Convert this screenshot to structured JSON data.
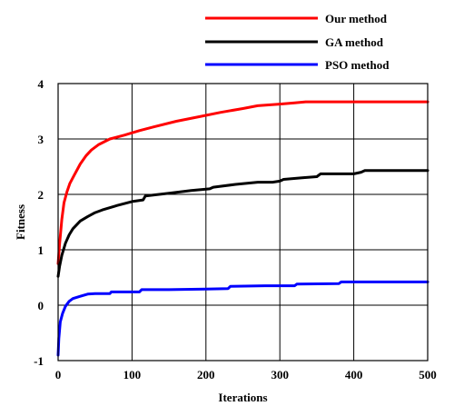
{
  "chart_data": {
    "type": "line",
    "title": "",
    "xlabel": "Iterations",
    "ylabel": "Fitness",
    "xlim": [
      0,
      500
    ],
    "ylim": [
      -1,
      4
    ],
    "xticks": [
      "0",
      "100",
      "200",
      "300",
      "400",
      "500"
    ],
    "yticks": [
      "-1",
      "0",
      "1",
      "2",
      "3",
      "4"
    ],
    "grid": true,
    "legend_position": "top-right, outside plot",
    "series": [
      {
        "name": "Our method",
        "color": "#ff0000",
        "x": [
          0,
          2,
          5,
          8,
          12,
          16,
          22,
          30,
          38,
          45,
          55,
          70,
          90,
          110,
          130,
          160,
          190,
          220,
          250,
          270,
          300,
          320,
          335,
          360,
          400,
          450,
          500
        ],
        "y": [
          0.75,
          1.1,
          1.55,
          1.85,
          2.05,
          2.2,
          2.35,
          2.55,
          2.7,
          2.8,
          2.9,
          3.0,
          3.07,
          3.15,
          3.22,
          3.32,
          3.4,
          3.48,
          3.55,
          3.6,
          3.63,
          3.65,
          3.67,
          3.67,
          3.67,
          3.67,
          3.67
        ]
      },
      {
        "name": "GA method",
        "color": "#000000",
        "x": [
          0,
          2,
          5,
          10,
          15,
          20,
          30,
          40,
          50,
          60,
          80,
          100,
          115,
          118,
          150,
          180,
          205,
          210,
          240,
          270,
          290,
          300,
          305,
          330,
          350,
          355,
          400,
          410,
          415,
          450,
          500
        ],
        "y": [
          0.52,
          0.7,
          0.9,
          1.12,
          1.27,
          1.38,
          1.52,
          1.6,
          1.67,
          1.72,
          1.8,
          1.87,
          1.9,
          1.97,
          2.02,
          2.07,
          2.1,
          2.13,
          2.18,
          2.22,
          2.22,
          2.24,
          2.27,
          2.3,
          2.32,
          2.37,
          2.37,
          2.4,
          2.43,
          2.43,
          2.43
        ]
      },
      {
        "name": "PSO method",
        "color": "#0000ff",
        "x": [
          0,
          1,
          3,
          6,
          10,
          15,
          20,
          30,
          40,
          50,
          70,
          72,
          110,
          113,
          150,
          200,
          230,
          233,
          280,
          320,
          323,
          380,
          383,
          430,
          500
        ],
        "y": [
          -0.9,
          -0.6,
          -0.3,
          -0.15,
          -0.02,
          0.07,
          0.12,
          0.16,
          0.2,
          0.21,
          0.21,
          0.24,
          0.24,
          0.28,
          0.28,
          0.29,
          0.3,
          0.34,
          0.35,
          0.35,
          0.38,
          0.39,
          0.42,
          0.42,
          0.42
        ]
      }
    ]
  }
}
